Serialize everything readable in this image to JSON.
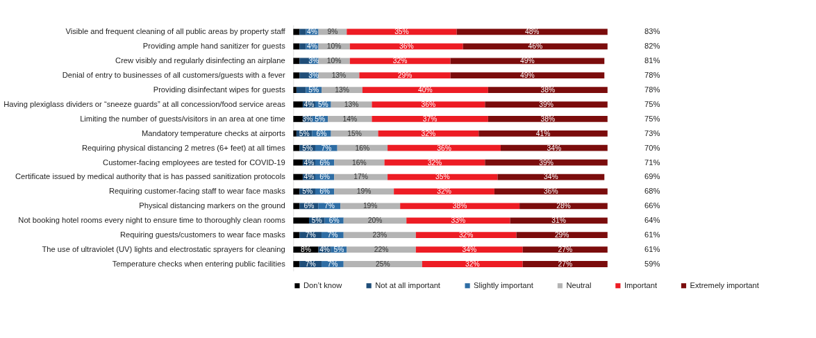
{
  "chart_data": {
    "type": "bar",
    "orientation": "horizontal",
    "stacked": true,
    "legend": "bottom",
    "grid": false,
    "tick_labels": "y",
    "xlim": [
      0,
      100
    ],
    "categories": [
      "Visible and frequent cleaning of all public areas by property staff",
      "Providing ample hand sanitizer for guests",
      "Crew visibly and regularly disinfecting an airplane",
      "Denial of entry to businesses of all customers/guests with a fever",
      "Providing disinfectant wipes for guests",
      "Having plexiglass dividers or “sneeze guards” at all concession/food service areas",
      "Limiting the number of guests/visitors in an area at one time",
      "Mandatory temperature checks at airports",
      "Requiring physical distancing 2 metres (6+ feet) at all times",
      "Customer-facing employees are tested for COVID-19",
      "Certificate issued by medical authority that is has passed sanitization protocols",
      "Requiring customer-facing staff to wear face masks",
      "Physical distancing markers on the ground",
      "Not booking hotel rooms every night to ensure time to thoroughly clean rooms",
      "Requiring guests/customers to wear face masks",
      "The use of ultraviolet (UV) lights and electrostatic sprayers for cleaning",
      "Temperature checks when entering public facilities"
    ],
    "series": [
      {
        "name": "Don’t know",
        "color": "#000000",
        "values": [
          2,
          2,
          2,
          2,
          1,
          3,
          3,
          1,
          2,
          3,
          3,
          2,
          2,
          5,
          2,
          8,
          2
        ],
        "value_labels": [
          null,
          null,
          null,
          null,
          null,
          null,
          null,
          null,
          null,
          null,
          null,
          null,
          null,
          null,
          null,
          "8%",
          null
        ]
      },
      {
        "name": "Not at all important",
        "color": "#1f4e79",
        "values": [
          2,
          2,
          3,
          3,
          3,
          4,
          3,
          5,
          5,
          4,
          4,
          5,
          6,
          5,
          7,
          4,
          7
        ],
        "value_labels": [
          null,
          null,
          null,
          null,
          null,
          "4%",
          "3%",
          "5%",
          "5%",
          "4%",
          "4%",
          "5%",
          "6%",
          "5%",
          "7%",
          "4%",
          "7%"
        ]
      },
      {
        "name": "Slightly important",
        "color": "#2e6da4",
        "values": [
          4,
          4,
          3,
          3,
          5,
          5,
          5,
          6,
          7,
          6,
          6,
          6,
          7,
          6,
          7,
          5,
          7
        ],
        "value_labels": [
          "4%",
          "4%",
          "3%",
          "3%",
          "5%",
          "5%",
          "5%",
          "6%",
          "7%",
          "6%",
          "6%",
          "6%",
          "7%",
          "6%",
          "7%",
          "5%",
          "7%"
        ]
      },
      {
        "name": "Neutral",
        "color": "#b4b4b4",
        "values": [
          9,
          10,
          10,
          13,
          13,
          13,
          14,
          15,
          16,
          16,
          17,
          19,
          19,
          20,
          23,
          22,
          25
        ],
        "value_labels": [
          "9%",
          "10%",
          "10%",
          "13%",
          "13%",
          "13%",
          "14%",
          "15%",
          "16%",
          "16%",
          "17%",
          "19%",
          "19%",
          "20%",
          "23%",
          "22%",
          "25%"
        ]
      },
      {
        "name": "Important",
        "color": "#ed1c24",
        "values": [
          35,
          36,
          32,
          29,
          40,
          36,
          37,
          32,
          36,
          32,
          35,
          32,
          38,
          33,
          32,
          34,
          32
        ],
        "value_labels": [
          "35%",
          "36%",
          "32%",
          "29%",
          "40%",
          "36%",
          "37%",
          "32%",
          "36%",
          "32%",
          "35%",
          "32%",
          "38%",
          "33%",
          "32%",
          "34%",
          "32%"
        ]
      },
      {
        "name": "Extremely important",
        "color": "#7b0c0c",
        "values": [
          48,
          46,
          49,
          49,
          38,
          39,
          38,
          41,
          34,
          39,
          34,
          36,
          28,
          31,
          29,
          27,
          27
        ],
        "value_labels": [
          "48%",
          "46%",
          "49%",
          "49%",
          "38%",
          "39%",
          "38%",
          "41%",
          "34%",
          "39%",
          "34%",
          "36%",
          "28%",
          "31%",
          "29%",
          "27%",
          "27%"
        ]
      }
    ],
    "annotations": [
      "83%",
      "82%",
      "81%",
      "78%",
      "78%",
      "75%",
      "75%",
      "73%",
      "70%",
      "71%",
      "69%",
      "68%",
      "66%",
      "64%",
      "61%",
      "61%",
      "59%"
    ]
  }
}
